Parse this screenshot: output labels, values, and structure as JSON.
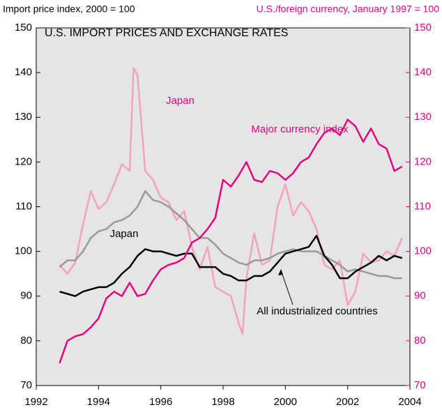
{
  "chart_data": {
    "type": "line",
    "title": "U.S. IMPORT PRICES AND EXCHANGE RATES",
    "y_label": "Import price index, 2000 = 100",
    "y2_label": "U.S./foreign currency, January 1997 = 100",
    "xlim": [
      1992,
      2004
    ],
    "xticks": [
      1992,
      1994,
      1996,
      1998,
      2000,
      2002,
      2004
    ],
    "ylim": [
      70,
      150
    ],
    "yticks": [
      70,
      80,
      90,
      100,
      110,
      120,
      130,
      140,
      150
    ],
    "y2lim": [
      70,
      150
    ],
    "y2ticks": [
      70,
      80,
      90,
      100,
      110,
      120,
      130,
      140,
      150
    ],
    "grid": false,
    "annotations": [
      "Japan",
      "Major currency index",
      "Japan",
      "All industrialized countries"
    ],
    "series": [
      {
        "name": "All industrialized countries",
        "color": "#000000",
        "axis": "y",
        "x": [
          1992.75,
          1993,
          1993.25,
          1993.5,
          1993.75,
          1994,
          1994.25,
          1994.5,
          1994.75,
          1995,
          1995.25,
          1995.5,
          1995.75,
          1996,
          1996.25,
          1996.5,
          1996.75,
          1997,
          1997.25,
          1997.5,
          1997.75,
          1998,
          1998.25,
          1998.5,
          1998.75,
          1999,
          1999.25,
          1999.5,
          1999.75,
          2000,
          2000.25,
          2000.5,
          2000.75,
          2001,
          2001.25,
          2001.5,
          2001.75,
          2002,
          2002.25,
          2002.5,
          2002.75,
          2003,
          2003.25,
          2003.5,
          2003.75
        ],
        "values": [
          91,
          90.5,
          90,
          91,
          91.5,
          92,
          92,
          93,
          95,
          96.5,
          99,
          100.5,
          100,
          100,
          99.5,
          99,
          99.5,
          99.5,
          96.5,
          96.5,
          96.5,
          95,
          94.5,
          93.5,
          93.5,
          94.5,
          94.5,
          95.5,
          97.5,
          99.5,
          100,
          100.5,
          101,
          103.5,
          99,
          97,
          94,
          94,
          95.5,
          96.5,
          97.5,
          99,
          98,
          99,
          98.5
        ]
      },
      {
        "name": "Japan",
        "color": "#999999",
        "axis": "y",
        "x": [
          1992.75,
          1993,
          1993.25,
          1993.5,
          1993.75,
          1994,
          1994.25,
          1994.5,
          1994.75,
          1995,
          1995.25,
          1995.5,
          1995.75,
          1996,
          1996.25,
          1996.5,
          1996.75,
          1997,
          1997.25,
          1997.5,
          1997.75,
          1998,
          1998.25,
          1998.5,
          1998.75,
          1999,
          1999.25,
          1999.5,
          1999.75,
          2000,
          2000.25,
          2000.5,
          2000.75,
          2001,
          2001.25,
          2001.5,
          2001.75,
          2002,
          2002.25,
          2002.5,
          2002.75,
          2003,
          2003.25,
          2003.5,
          2003.75
        ],
        "values": [
          96.5,
          98,
          98,
          100,
          103,
          104.5,
          105,
          106.5,
          107,
          108,
          110,
          113.5,
          111.5,
          111,
          110,
          108.5,
          107,
          105,
          103,
          103,
          101.5,
          99.5,
          98.5,
          97.5,
          97,
          98,
          98,
          98.5,
          99.5,
          100,
          100.5,
          100,
          100,
          100,
          99,
          98,
          97,
          95.5,
          96,
          95.5,
          95,
          94.5,
          94.5,
          94,
          94
        ]
      },
      {
        "name": "Major currency index",
        "color": "#e6007e",
        "axis": "y2",
        "x": [
          1992.75,
          1993,
          1993.25,
          1993.5,
          1993.75,
          1994,
          1994.25,
          1994.5,
          1994.75,
          1995,
          1995.25,
          1995.5,
          1995.75,
          1996,
          1996.25,
          1996.5,
          1996.75,
          1997,
          1997.25,
          1997.5,
          1997.75,
          1998,
          1998.25,
          1998.5,
          1998.75,
          1999,
          1999.25,
          1999.5,
          1999.75,
          2000,
          2000.25,
          2000.5,
          2000.75,
          2001,
          2001.25,
          2001.5,
          2001.75,
          2002,
          2002.25,
          2002.5,
          2002.75,
          2003,
          2003.25,
          2003.5,
          2003.75
        ],
        "values": [
          75,
          80,
          81,
          81.5,
          83,
          85,
          89.5,
          91,
          90,
          93,
          90,
          90.5,
          93.5,
          96,
          97,
          97.5,
          98.5,
          102,
          103,
          105,
          107.5,
          116,
          114.5,
          117,
          120,
          116,
          115.5,
          118,
          117.5,
          116,
          117.5,
          120,
          121,
          124,
          126.5,
          127.5,
          126,
          129.5,
          128,
          124.5,
          127.5,
          124,
          123,
          118,
          119
        ]
      },
      {
        "name": "Japan",
        "color": "#f4a0c0",
        "axis": "y2",
        "x": [
          1992.75,
          1993,
          1993.25,
          1993.5,
          1993.75,
          1994,
          1994.25,
          1994.5,
          1994.75,
          1995,
          1995.125,
          1995.25,
          1995.5,
          1995.75,
          1996,
          1996.25,
          1996.5,
          1996.75,
          1997,
          1997.25,
          1997.5,
          1997.75,
          1998,
          1998.25,
          1998.5,
          1998.625,
          1998.75,
          1999,
          1999.25,
          1999.5,
          1999.75,
          2000,
          2000.25,
          2000.5,
          2000.75,
          2001,
          2001.25,
          2001.5,
          2001.75,
          2002,
          2002.25,
          2002.5,
          2002.75,
          2003,
          2003.25,
          2003.5,
          2003.75
        ],
        "values": [
          97,
          95,
          97.5,
          106,
          113.5,
          109.5,
          111,
          115,
          119.5,
          118,
          141,
          139.5,
          118,
          116,
          112,
          111,
          107,
          109,
          101,
          96,
          101,
          92,
          91,
          90,
          84,
          81.5,
          94,
          104,
          97,
          98,
          110,
          115,
          108,
          111,
          109,
          105,
          97,
          96,
          98,
          88,
          91,
          99.5,
          97.5,
          98,
          100,
          99,
          103
        ]
      }
    ]
  }
}
